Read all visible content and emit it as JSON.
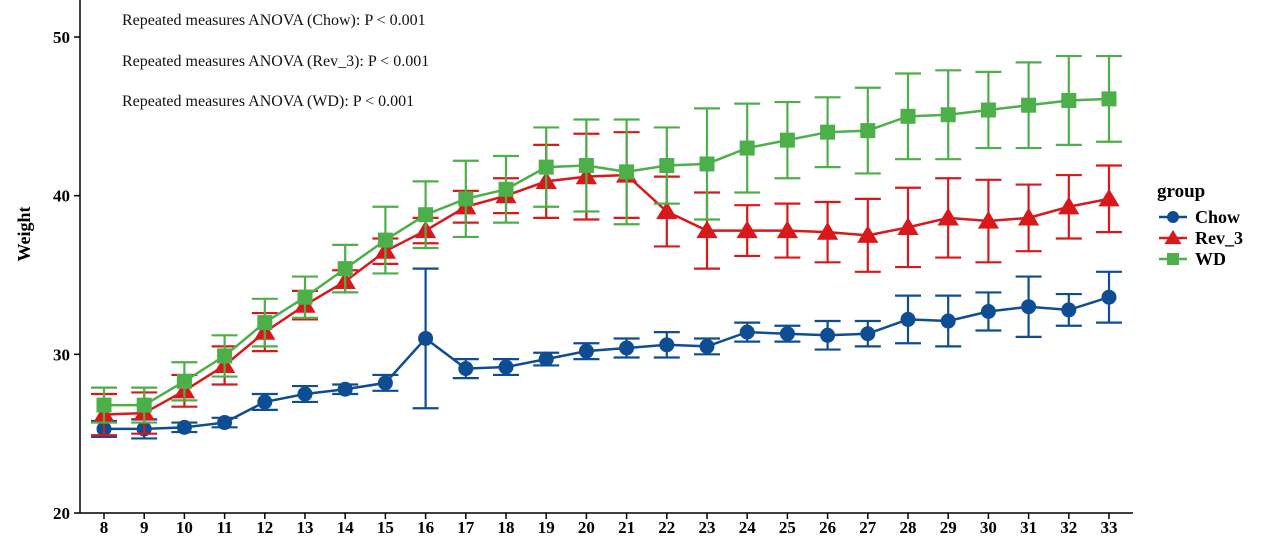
{
  "chart_data": {
    "type": "line",
    "xlabel": "",
    "ylabel": "Weight",
    "x": [
      8,
      9,
      10,
      11,
      12,
      13,
      14,
      15,
      16,
      17,
      18,
      19,
      20,
      21,
      22,
      23,
      24,
      25,
      26,
      27,
      28,
      29,
      30,
      31,
      32,
      33
    ],
    "yticks": [
      20,
      30,
      40,
      50
    ],
    "ylim": [
      20,
      52
    ],
    "grid": false,
    "legend": {
      "title": "group",
      "position": "right",
      "entries": [
        "Chow",
        "Rev_3",
        "WD"
      ]
    },
    "annotations": [
      "Repeated measures ANOVA (Chow):  P < 0.001",
      "Repeated measures ANOVA (Rev_3):  P < 0.001",
      "Repeated measures ANOVA (WD):  P < 0.001"
    ],
    "series": [
      {
        "name": "Chow",
        "color": "#0e4d92",
        "marker": "circle",
        "values": [
          25.3,
          25.3,
          25.4,
          25.7,
          27.0,
          27.5,
          27.8,
          28.2,
          31.0,
          29.1,
          29.2,
          29.7,
          30.2,
          30.4,
          30.6,
          30.5,
          31.4,
          31.3,
          31.2,
          31.3,
          32.2,
          32.1,
          32.7,
          33.0,
          32.8,
          33.6
        ],
        "err": [
          0.5,
          0.6,
          0.3,
          0.3,
          0.5,
          0.5,
          0.3,
          0.5,
          4.4,
          0.6,
          0.5,
          0.4,
          0.5,
          0.6,
          0.8,
          0.5,
          0.6,
          0.5,
          0.9,
          0.8,
          1.5,
          1.6,
          1.2,
          1.9,
          1.0,
          1.6
        ]
      },
      {
        "name": "Rev_3",
        "color": "#d7191c",
        "marker": "triangle",
        "values": [
          26.2,
          26.3,
          27.7,
          29.3,
          31.4,
          33.1,
          34.6,
          36.5,
          37.8,
          39.3,
          40.0,
          40.9,
          41.2,
          41.3,
          39.0,
          37.8,
          37.8,
          37.8,
          37.7,
          37.5,
          38.0,
          38.6,
          38.4,
          38.6,
          39.3,
          39.8
        ],
        "err": [
          1.3,
          1.3,
          1.0,
          1.2,
          1.2,
          0.9,
          0.7,
          0.8,
          0.8,
          1.0,
          1.1,
          2.3,
          2.7,
          2.7,
          2.2,
          2.4,
          1.6,
          1.7,
          1.9,
          2.3,
          2.5,
          2.5,
          2.6,
          2.1,
          2.0,
          2.1
        ]
      },
      {
        "name": "WD",
        "color": "#4daf4a",
        "marker": "square",
        "values": [
          26.8,
          26.8,
          28.3,
          29.9,
          32.0,
          33.6,
          35.4,
          37.2,
          38.8,
          39.8,
          40.4,
          41.8,
          41.9,
          41.5,
          41.9,
          42.0,
          43.0,
          43.5,
          44.0,
          44.1,
          45.0,
          45.1,
          45.4,
          45.7,
          46.0,
          46.1
        ],
        "err": [
          1.1,
          1.1,
          1.2,
          1.3,
          1.5,
          1.3,
          1.5,
          2.1,
          2.1,
          2.4,
          2.1,
          2.5,
          2.9,
          3.3,
          2.4,
          3.5,
          2.8,
          2.4,
          2.2,
          2.7,
          2.7,
          2.8,
          2.4,
          2.7,
          2.8,
          2.7
        ]
      }
    ]
  }
}
